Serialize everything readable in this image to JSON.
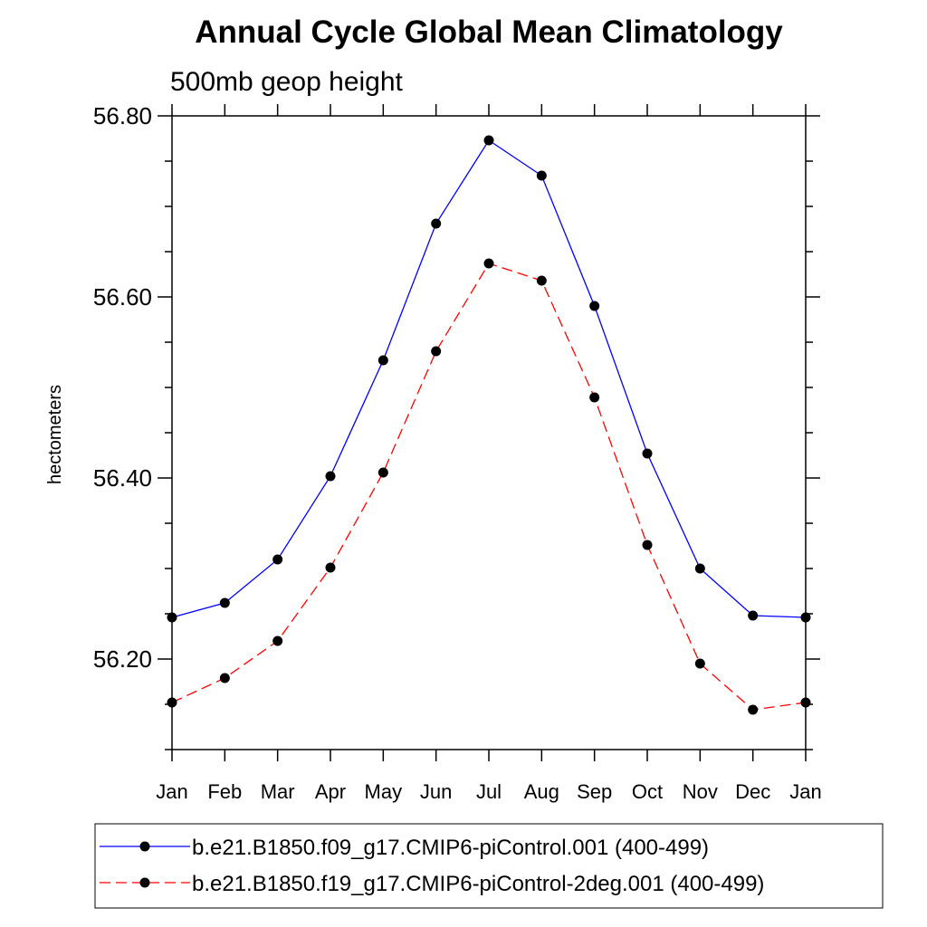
{
  "chart_data": {
    "type": "line",
    "title": "Annual Cycle Global Mean Climatology",
    "subtitle": "500mb geop height",
    "xlabel": "",
    "ylabel": "hectometers",
    "categories": [
      "Jan",
      "Feb",
      "Mar",
      "Apr",
      "May",
      "Jun",
      "Jul",
      "Aug",
      "Sep",
      "Oct",
      "Nov",
      "Dec",
      "Jan"
    ],
    "ylim": [
      56.1,
      56.8
    ],
    "yticks": [
      56.2,
      56.4,
      56.6,
      56.8
    ],
    "ytick_labels": [
      "56.20",
      "56.40",
      "56.60",
      "56.80"
    ],
    "grid": false,
    "legend_position": "bottom",
    "series": [
      {
        "name": "b.e21.B1850.f09_g17.CMIP6-piControl.001 (400-499)",
        "color": "#0000ff",
        "dash": "solid",
        "marker": "filled-circle",
        "values": [
          56.246,
          56.262,
          56.31,
          56.402,
          56.53,
          56.681,
          56.773,
          56.734,
          56.59,
          56.427,
          56.3,
          56.248,
          56.246
        ]
      },
      {
        "name": "b.e21.B1850.f19_g17.CMIP6-piControl-2deg.001 (400-499)",
        "color": "#ff0000",
        "dash": "dashed",
        "marker": "filled-circle",
        "values": [
          56.152,
          56.179,
          56.22,
          56.301,
          56.406,
          56.54,
          56.637,
          56.618,
          56.489,
          56.326,
          56.195,
          56.144,
          56.152
        ]
      }
    ]
  }
}
